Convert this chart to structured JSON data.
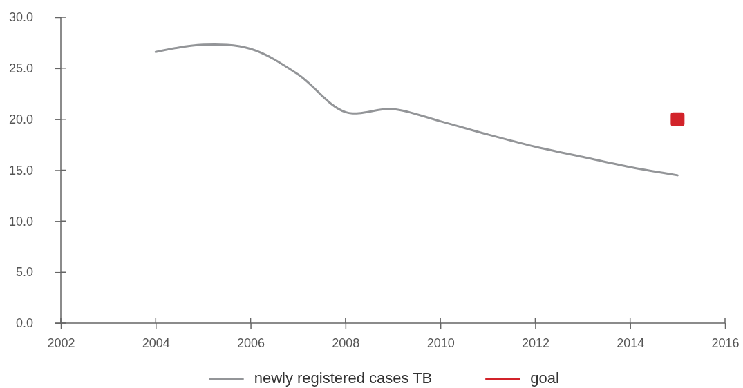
{
  "chart_data": {
    "type": "line",
    "x": [
      2004,
      2005,
      2006,
      2007,
      2008,
      2009,
      2010,
      2011,
      2012,
      2013,
      2014,
      2015
    ],
    "series": [
      {
        "name": "newly registered cases TB",
        "color": "#939598",
        "values": [
          26.6,
          27.3,
          26.9,
          24.4,
          20.7,
          21.0,
          19.8,
          18.5,
          17.3,
          16.3,
          15.3,
          14.5
        ]
      },
      {
        "name": "goal",
        "type": "scatter",
        "marker": "square",
        "color": "#d2232a",
        "x": [
          2015
        ],
        "values": [
          20.0
        ]
      }
    ],
    "xlim": [
      2002,
      2016
    ],
    "xticks": [
      2002,
      2004,
      2006,
      2008,
      2010,
      2012,
      2014,
      2016
    ],
    "ylim": [
      0,
      30
    ],
    "yticks": [
      {
        "value": 0,
        "label": "0.0"
      },
      {
        "value": 5,
        "label": "5.0"
      },
      {
        "value": 10,
        "label": "10.0"
      },
      {
        "value": 15,
        "label": "15.0"
      },
      {
        "value": 20,
        "label": "20.0"
      },
      {
        "value": 25,
        "label": "25.0"
      },
      {
        "value": 30,
        "label": "30.0"
      }
    ],
    "legend": "bottom"
  }
}
